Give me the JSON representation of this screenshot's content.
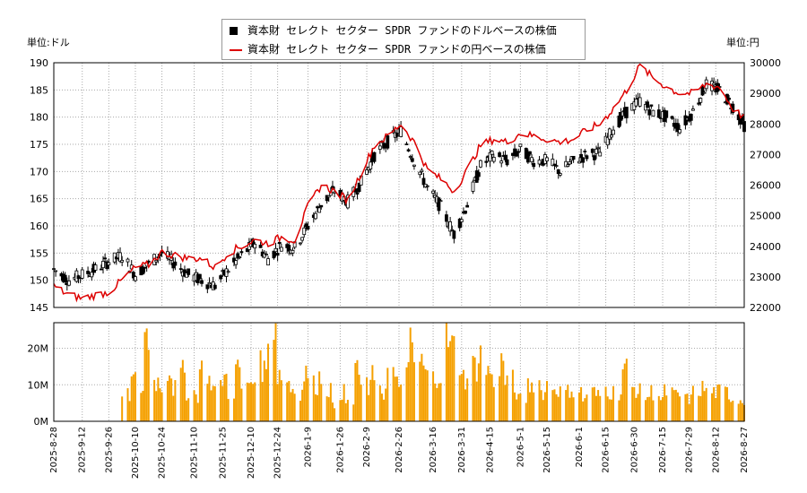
{
  "legend": {
    "usd_label": "資本財 セレクト セクター SPDR ファンドのドルベースの株価",
    "jpy_label": "資本財 セレクト セクター SPDR ファンドの円ベースの株価"
  },
  "units": {
    "left": "単位:ドル",
    "right": "単位:円"
  },
  "colors": {
    "candle": "#000000",
    "jpy_line": "#dd0000",
    "volume": "#f5a000",
    "grid": "#aaaaaa"
  },
  "chart_data": [
    {
      "type": "candlestick",
      "title": "",
      "y_left_label": "単位:ドル",
      "y_right_label": "単位:円",
      "y_left_range": [
        145,
        190
      ],
      "y_right_range": [
        22000,
        30000
      ],
      "y_left_ticks": [
        145,
        150,
        155,
        160,
        165,
        170,
        175,
        180,
        185,
        190
      ],
      "y_right_ticks": [
        22000,
        23000,
        24000,
        25000,
        26000,
        27000,
        28000,
        29000,
        30000
      ],
      "grid": true,
      "x_start": "2025-08-28",
      "x_end": "2026-08-27",
      "series": [
        {
          "name": "資本財 セレクト セクター SPDR ファンドのドルベースの株価",
          "type": "candlestick",
          "points": [
            [
              "2025-08-28",
              152
            ],
            [
              "2025-09-05",
              150
            ],
            [
              "2025-09-12",
              151
            ],
            [
              "2025-09-19",
              152
            ],
            [
              "2025-09-26",
              153.5
            ],
            [
              "2025-10-03",
              154.5
            ],
            [
              "2025-10-10",
              151
            ],
            [
              "2025-10-17",
              153
            ],
            [
              "2025-10-24",
              155
            ],
            [
              "2025-10-31",
              153
            ],
            [
              "2025-11-07",
              151
            ],
            [
              "2025-11-14",
              150
            ],
            [
              "2025-11-21",
              149
            ],
            [
              "2025-11-28",
              152
            ],
            [
              "2025-12-05",
              154.5
            ],
            [
              "2025-12-12",
              157
            ],
            [
              "2025-12-19",
              154
            ],
            [
              "2025-12-26",
              156.5
            ],
            [
              "2026-01-02",
              156
            ],
            [
              "2026-01-09",
              160
            ],
            [
              "2026-01-16",
              164
            ],
            [
              "2026-01-23",
              166.5
            ],
            [
              "2026-01-30",
              164.5
            ],
            [
              "2026-02-06",
              168
            ],
            [
              "2026-02-13",
              173
            ],
            [
              "2026-02-20",
              175.5
            ],
            [
              "2026-02-27",
              177.5
            ],
            [
              "2026-03-06",
              172
            ],
            [
              "2026-03-13",
              167
            ],
            [
              "2026-03-20",
              163.5
            ],
            [
              "2026-03-27",
              158.5
            ],
            [
              "2026-04-03",
              164
            ],
            [
              "2026-04-10",
              171
            ],
            [
              "2026-04-17",
              173
            ],
            [
              "2026-04-24",
              172
            ],
            [
              "2026-05-01",
              174
            ],
            [
              "2026-05-08",
              172
            ],
            [
              "2026-05-15",
              172
            ],
            [
              "2026-05-22",
              170
            ],
            [
              "2026-05-29",
              172
            ],
            [
              "2026-06-05",
              173
            ],
            [
              "2026-06-12",
              173.5
            ],
            [
              "2026-06-19",
              178
            ],
            [
              "2026-06-26",
              181
            ],
            [
              "2026-07-03",
              183
            ],
            [
              "2026-07-10",
              181
            ],
            [
              "2026-07-17",
              180
            ],
            [
              "2026-07-24",
              178
            ],
            [
              "2026-07-31",
              181
            ],
            [
              "2026-08-07",
              186
            ],
            [
              "2026-08-14",
              185
            ],
            [
              "2026-08-21",
              182
            ],
            [
              "2026-08-27",
              178.5
            ]
          ]
        },
        {
          "name": "資本財 セレクト セクター SPDR ファンドの円ベースの株価",
          "type": "line",
          "axis": "right",
          "points": [
            [
              "2025-08-28",
              22700
            ],
            [
              "2025-09-05",
              22400
            ],
            [
              "2025-09-12",
              22300
            ],
            [
              "2025-09-19",
              22400
            ],
            [
              "2025-09-26",
              22500
            ],
            [
              "2025-10-03",
              22900
            ],
            [
              "2025-10-10",
              23300
            ],
            [
              "2025-10-17",
              23400
            ],
            [
              "2025-10-24",
              23800
            ],
            [
              "2025-10-31",
              23700
            ],
            [
              "2025-11-07",
              23600
            ],
            [
              "2025-11-14",
              23600
            ],
            [
              "2025-11-21",
              23300
            ],
            [
              "2025-11-28",
              23800
            ],
            [
              "2025-12-05",
              24000
            ],
            [
              "2025-12-12",
              24200
            ],
            [
              "2025-12-19",
              24100
            ],
            [
              "2025-12-26",
              24300
            ],
            [
              "2026-01-02",
              24200
            ],
            [
              "2026-01-09",
              25300
            ],
            [
              "2026-01-16",
              26000
            ],
            [
              "2026-01-23",
              25800
            ],
            [
              "2026-01-30",
              25500
            ],
            [
              "2026-02-06",
              26400
            ],
            [
              "2026-02-13",
              27300
            ],
            [
              "2026-02-20",
              27600
            ],
            [
              "2026-02-27",
              28000
            ],
            [
              "2026-03-06",
              27400
            ],
            [
              "2026-03-13",
              26500
            ],
            [
              "2026-03-20",
              26200
            ],
            [
              "2026-03-27",
              25800
            ],
            [
              "2026-04-03",
              26500
            ],
            [
              "2026-04-10",
              27300
            ],
            [
              "2026-04-17",
              27500
            ],
            [
              "2026-04-24",
              27400
            ],
            [
              "2026-05-01",
              27700
            ],
            [
              "2026-05-08",
              27600
            ],
            [
              "2026-05-15",
              27500
            ],
            [
              "2026-05-22",
              27400
            ],
            [
              "2026-05-29",
              27500
            ],
            [
              "2026-06-05",
              27800
            ],
            [
              "2026-06-12",
              28000
            ],
            [
              "2026-06-19",
              28500
            ],
            [
              "2026-06-26",
              29100
            ],
            [
              "2026-07-03",
              29900
            ],
            [
              "2026-07-10",
              29500
            ],
            [
              "2026-07-17",
              29200
            ],
            [
              "2026-07-24",
              29000
            ],
            [
              "2026-07-31",
              29000
            ],
            [
              "2026-08-07",
              29300
            ],
            [
              "2026-08-14",
              29200
            ],
            [
              "2026-08-21",
              28500
            ],
            [
              "2026-08-27",
              28200
            ]
          ]
        }
      ]
    },
    {
      "type": "bar",
      "title": "",
      "y_range": [
        0,
        27000000
      ],
      "y_tick_values": [
        0,
        10000000,
        20000000
      ],
      "y_tick_labels": [
        "0M",
        "10M",
        "20M"
      ],
      "grid": true,
      "x_tick_labels": [
        "2025-8-28",
        "2025-9-12",
        "2025-9-26",
        "2025-10-10",
        "2025-10-24",
        "2025-11-10",
        "2025-11-25",
        "2025-12-10",
        "2025-12-24",
        "2026-1-9",
        "2026-1-26",
        "2026-2-9",
        "2026-2-26",
        "2026-3-16",
        "2026-3-31",
        "2026-4-15",
        "2026-5-1",
        "2026-5-15",
        "2026-6-1",
        "2026-6-15",
        "2026-6-30",
        "2026-7-15",
        "2026-7-29",
        "2026-8-12",
        "2026-8-27"
      ],
      "volume_start": "2025-10-03",
      "values": [
        7000000,
        11000000,
        9000000,
        24000000,
        11000000,
        10000000,
        14000000,
        9000000,
        13000000,
        8000000,
        7000000,
        14000000,
        11000000,
        9000000,
        12000000,
        8000000,
        14000000,
        9000000,
        11000000,
        15000000,
        14000000,
        27000000,
        13000000,
        11000000,
        9000000,
        8000000,
        13000000,
        10000000,
        12000000,
        9000000,
        4000000,
        8000000,
        5000000,
        16000000,
        10000000,
        9000000,
        12000000,
        8000000,
        14000000,
        10000000,
        13000000,
        21000000,
        16000000,
        14000000,
        12000000,
        13000000,
        22000000,
        20000000,
        16000000,
        12000000,
        15000000,
        18000000,
        14000000,
        11000000,
        16000000,
        11000000,
        8000000,
        6000000,
        10000000,
        11000000,
        8000000,
        10000000,
        9000000,
        8000000,
        9000000,
        8000000,
        6000000,
        8000000,
        7000000,
        9000000,
        8000000,
        8000000,
        14000000,
        9000000,
        8000000,
        7000000,
        8000000,
        6000000,
        8000000,
        7000000,
        7000000,
        6000000,
        8000000,
        9000000,
        8000000,
        8000000,
        8000000,
        7000000,
        6000000,
        6000000
      ]
    }
  ]
}
